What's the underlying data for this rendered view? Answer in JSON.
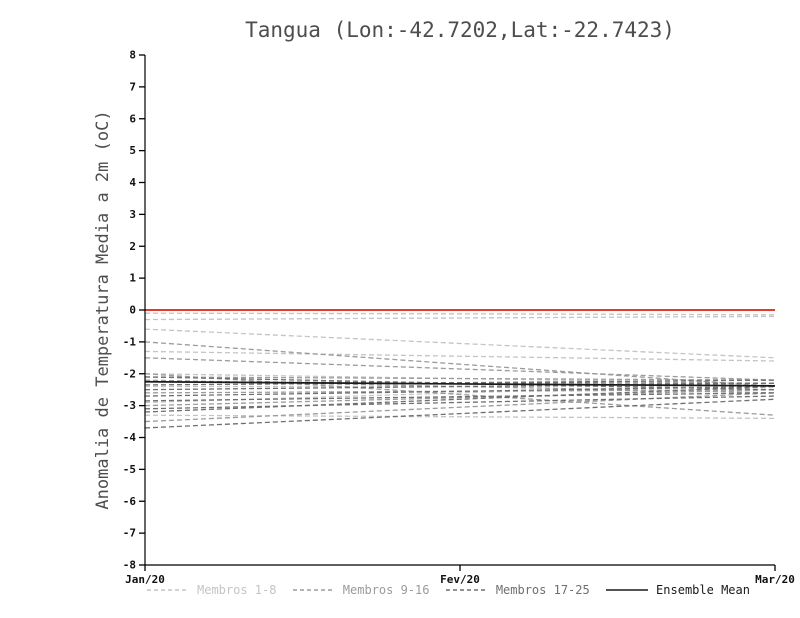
{
  "page": {
    "background": "#ffffff"
  },
  "chart_data": {
    "type": "line",
    "title": "Tangua (Lon:-42.7202,Lat:-22.7423)",
    "ylabel": "Anomalia de Temperatura Media a 2m (oC)",
    "x_ticks": [
      "Jan/20",
      "Fev/20",
      "Mar/20"
    ],
    "y_ticks": [
      8,
      7,
      6,
      5,
      4,
      3,
      2,
      1,
      0,
      -1,
      -2,
      -3,
      -4,
      -5,
      -6,
      -7,
      -8
    ],
    "ylim": [
      -8,
      8
    ],
    "grid": false,
    "legend_position": "bottom",
    "zero_line": {
      "y": 0,
      "color": "#e23b28"
    },
    "groups": [
      {
        "name": "Membros 1-8",
        "color": "#c4c4c4",
        "style": "dashed",
        "members": [
          [
            -0.1,
            -0.12,
            -0.15
          ],
          [
            -0.3,
            -0.25,
            -0.2
          ],
          [
            -0.6,
            -1.05,
            -1.5
          ],
          [
            -1.3,
            -1.45,
            -1.6
          ],
          [
            -2.0,
            -2.15,
            -2.3
          ],
          [
            -2.4,
            -2.4,
            -2.4
          ],
          [
            -2.9,
            -2.6,
            -2.3
          ],
          [
            -3.3,
            -3.35,
            -3.4
          ]
        ]
      },
      {
        "name": "Membros 9-16",
        "color": "#9b9b9b",
        "style": "dashed",
        "members": [
          [
            -1.0,
            -1.7,
            -2.4
          ],
          [
            -1.5,
            -1.85,
            -2.2
          ],
          [
            -2.1,
            -2.15,
            -2.2
          ],
          [
            -2.2,
            -2.4,
            -2.6
          ],
          [
            -2.6,
            -2.55,
            -2.5
          ],
          [
            -3.0,
            -2.75,
            -2.5
          ],
          [
            -3.5,
            -3.05,
            -2.6
          ],
          [
            -2.0,
            -2.65,
            -3.3
          ]
        ]
      },
      {
        "name": "Membros 17-25",
        "color": "#6f6f6f",
        "style": "dashed",
        "members": [
          [
            -2.1,
            -2.3,
            -2.5
          ],
          [
            -2.25,
            -2.28,
            -2.3
          ],
          [
            -2.35,
            -2.28,
            -2.2
          ],
          [
            -2.5,
            -2.4,
            -2.3
          ],
          [
            -2.7,
            -2.55,
            -2.4
          ],
          [
            -2.85,
            -2.72,
            -2.6
          ],
          [
            -3.1,
            -2.9,
            -2.7
          ],
          [
            -3.2,
            -2.8,
            -2.4
          ],
          [
            -3.7,
            -3.25,
            -2.8
          ]
        ]
      }
    ],
    "ensemble_mean": {
      "name": "Ensemble Mean",
      "color": "#1a1a1a",
      "style": "solid",
      "values": [
        -2.25,
        -2.32,
        -2.38
      ]
    }
  }
}
